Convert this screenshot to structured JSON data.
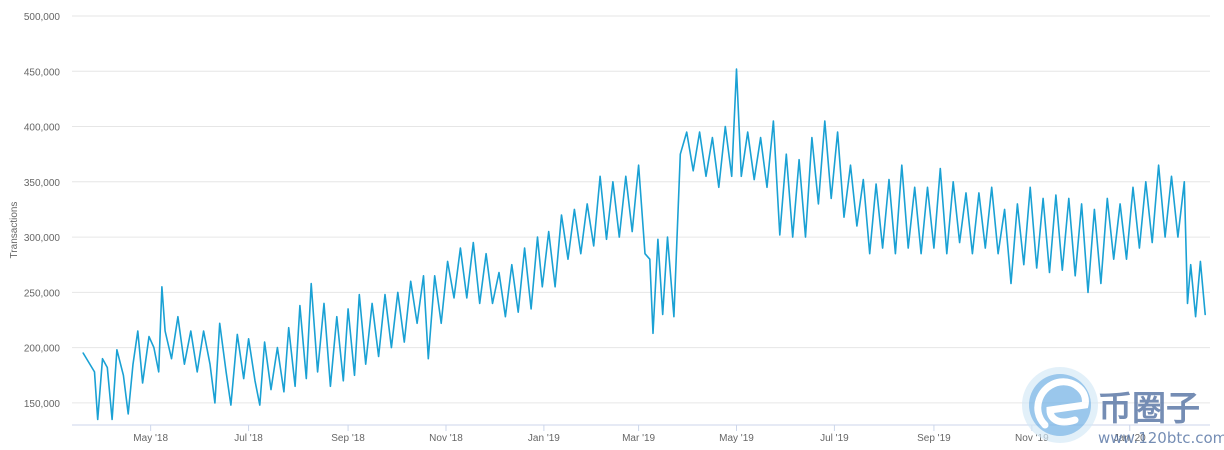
{
  "chart_data": {
    "type": "line",
    "title": "",
    "ylabel": "Transactions",
    "xlabel": "",
    "ylim": [
      130000,
      500000
    ],
    "xlim": [
      "2018-03-13",
      "2020-02-20"
    ],
    "grid": true,
    "y_ticks": [
      {
        "value": 150000,
        "label": "150,000"
      },
      {
        "value": 200000,
        "label": "200,000"
      },
      {
        "value": 250000,
        "label": "250,000"
      },
      {
        "value": 300000,
        "label": "300,000"
      },
      {
        "value": 350000,
        "label": "350,000"
      },
      {
        "value": 400000,
        "label": "400,000"
      },
      {
        "value": 450000,
        "label": "450,000"
      },
      {
        "value": 500000,
        "label": "500,000"
      }
    ],
    "x_ticks": [
      {
        "date": "2018-05-01",
        "label": "May '18"
      },
      {
        "date": "2018-07-01",
        "label": "Jul '18"
      },
      {
        "date": "2018-09-01",
        "label": "Sep '18"
      },
      {
        "date": "2018-11-01",
        "label": "Nov '18"
      },
      {
        "date": "2019-01-01",
        "label": "Jan '19"
      },
      {
        "date": "2019-03-01",
        "label": "Mar '19"
      },
      {
        "date": "2019-05-01",
        "label": "May '19"
      },
      {
        "date": "2019-07-01",
        "label": "Jul '19"
      },
      {
        "date": "2019-09-01",
        "label": "Sep '19"
      },
      {
        "date": "2019-11-01",
        "label": "Nov '19"
      },
      {
        "date": "2020-01-01",
        "label": "Jan '20"
      }
    ],
    "series": [
      {
        "color": "#1aa1d4",
        "points": [
          [
            "2018-03-20",
            195000
          ],
          [
            "2018-03-27",
            178000
          ],
          [
            "2018-03-29",
            135000
          ],
          [
            "2018-04-01",
            190000
          ],
          [
            "2018-04-04",
            182000
          ],
          [
            "2018-04-07",
            135000
          ],
          [
            "2018-04-10",
            198000
          ],
          [
            "2018-04-14",
            175000
          ],
          [
            "2018-04-17",
            140000
          ],
          [
            "2018-04-20",
            185000
          ],
          [
            "2018-04-23",
            215000
          ],
          [
            "2018-04-26",
            168000
          ],
          [
            "2018-04-30",
            210000
          ],
          [
            "2018-05-03",
            200000
          ],
          [
            "2018-05-06",
            178000
          ],
          [
            "2018-05-08",
            255000
          ],
          [
            "2018-05-10",
            215000
          ],
          [
            "2018-05-14",
            190000
          ],
          [
            "2018-05-18",
            228000
          ],
          [
            "2018-05-22",
            185000
          ],
          [
            "2018-05-26",
            215000
          ],
          [
            "2018-05-30",
            178000
          ],
          [
            "2018-06-03",
            215000
          ],
          [
            "2018-06-07",
            185000
          ],
          [
            "2018-06-10",
            150000
          ],
          [
            "2018-06-13",
            222000
          ],
          [
            "2018-06-17",
            178000
          ],
          [
            "2018-06-20",
            148000
          ],
          [
            "2018-06-24",
            212000
          ],
          [
            "2018-06-28",
            172000
          ],
          [
            "2018-07-01",
            208000
          ],
          [
            "2018-07-05",
            170000
          ],
          [
            "2018-07-08",
            148000
          ],
          [
            "2018-07-11",
            205000
          ],
          [
            "2018-07-15",
            162000
          ],
          [
            "2018-07-19",
            200000
          ],
          [
            "2018-07-23",
            160000
          ],
          [
            "2018-07-26",
            218000
          ],
          [
            "2018-07-30",
            165000
          ],
          [
            "2018-08-02",
            238000
          ],
          [
            "2018-08-06",
            172000
          ],
          [
            "2018-08-09",
            258000
          ],
          [
            "2018-08-13",
            178000
          ],
          [
            "2018-08-17",
            240000
          ],
          [
            "2018-08-21",
            165000
          ],
          [
            "2018-08-25",
            228000
          ],
          [
            "2018-08-29",
            170000
          ],
          [
            "2018-09-01",
            235000
          ],
          [
            "2018-09-05",
            175000
          ],
          [
            "2018-09-08",
            248000
          ],
          [
            "2018-09-12",
            185000
          ],
          [
            "2018-09-16",
            240000
          ],
          [
            "2018-09-20",
            192000
          ],
          [
            "2018-09-24",
            248000
          ],
          [
            "2018-09-28",
            200000
          ],
          [
            "2018-10-02",
            250000
          ],
          [
            "2018-10-06",
            205000
          ],
          [
            "2018-10-10",
            260000
          ],
          [
            "2018-10-14",
            222000
          ],
          [
            "2018-10-18",
            265000
          ],
          [
            "2018-10-21",
            190000
          ],
          [
            "2018-10-25",
            265000
          ],
          [
            "2018-10-29",
            222000
          ],
          [
            "2018-11-02",
            278000
          ],
          [
            "2018-11-06",
            245000
          ],
          [
            "2018-11-10",
            290000
          ],
          [
            "2018-11-14",
            245000
          ],
          [
            "2018-11-18",
            295000
          ],
          [
            "2018-11-22",
            240000
          ],
          [
            "2018-11-26",
            285000
          ],
          [
            "2018-11-30",
            240000
          ],
          [
            "2018-12-04",
            268000
          ],
          [
            "2018-12-08",
            228000
          ],
          [
            "2018-12-12",
            275000
          ],
          [
            "2018-12-16",
            232000
          ],
          [
            "2018-12-20",
            290000
          ],
          [
            "2018-12-24",
            235000
          ],
          [
            "2018-12-28",
            300000
          ],
          [
            "2018-12-31",
            255000
          ],
          [
            "2019-01-04",
            305000
          ],
          [
            "2019-01-08",
            255000
          ],
          [
            "2019-01-12",
            320000
          ],
          [
            "2019-01-16",
            280000
          ],
          [
            "2019-01-20",
            325000
          ],
          [
            "2019-01-24",
            285000
          ],
          [
            "2019-01-28",
            330000
          ],
          [
            "2019-02-01",
            292000
          ],
          [
            "2019-02-05",
            355000
          ],
          [
            "2019-02-09",
            298000
          ],
          [
            "2019-02-13",
            350000
          ],
          [
            "2019-02-17",
            300000
          ],
          [
            "2019-02-21",
            355000
          ],
          [
            "2019-02-25",
            305000
          ],
          [
            "2019-03-01",
            365000
          ],
          [
            "2019-03-05",
            285000
          ],
          [
            "2019-03-08",
            280000
          ],
          [
            "2019-03-10",
            213000
          ],
          [
            "2019-03-13",
            298000
          ],
          [
            "2019-03-16",
            230000
          ],
          [
            "2019-03-19",
            300000
          ],
          [
            "2019-03-23",
            228000
          ],
          [
            "2019-03-27",
            375000
          ],
          [
            "2019-03-31",
            395000
          ],
          [
            "2019-04-04",
            360000
          ],
          [
            "2019-04-08",
            395000
          ],
          [
            "2019-04-12",
            355000
          ],
          [
            "2019-04-16",
            390000
          ],
          [
            "2019-04-20",
            345000
          ],
          [
            "2019-04-24",
            400000
          ],
          [
            "2019-04-28",
            355000
          ],
          [
            "2019-05-01",
            452000
          ],
          [
            "2019-05-04",
            355000
          ],
          [
            "2019-05-08",
            395000
          ],
          [
            "2019-05-12",
            352000
          ],
          [
            "2019-05-16",
            390000
          ],
          [
            "2019-05-20",
            345000
          ],
          [
            "2019-05-24",
            405000
          ],
          [
            "2019-05-28",
            302000
          ],
          [
            "2019-06-01",
            375000
          ],
          [
            "2019-06-05",
            300000
          ],
          [
            "2019-06-09",
            370000
          ],
          [
            "2019-06-13",
            300000
          ],
          [
            "2019-06-17",
            390000
          ],
          [
            "2019-06-21",
            330000
          ],
          [
            "2019-06-25",
            405000
          ],
          [
            "2019-06-29",
            335000
          ],
          [
            "2019-07-03",
            395000
          ],
          [
            "2019-07-07",
            318000
          ],
          [
            "2019-07-11",
            365000
          ],
          [
            "2019-07-15",
            310000
          ],
          [
            "2019-07-19",
            352000
          ],
          [
            "2019-07-23",
            285000
          ],
          [
            "2019-07-27",
            348000
          ],
          [
            "2019-07-31",
            290000
          ],
          [
            "2019-08-04",
            352000
          ],
          [
            "2019-08-08",
            285000
          ],
          [
            "2019-08-12",
            365000
          ],
          [
            "2019-08-16",
            290000
          ],
          [
            "2019-08-20",
            345000
          ],
          [
            "2019-08-24",
            285000
          ],
          [
            "2019-08-28",
            345000
          ],
          [
            "2019-09-01",
            290000
          ],
          [
            "2019-09-05",
            362000
          ],
          [
            "2019-09-09",
            285000
          ],
          [
            "2019-09-13",
            350000
          ],
          [
            "2019-09-17",
            295000
          ],
          [
            "2019-09-21",
            340000
          ],
          [
            "2019-09-25",
            285000
          ],
          [
            "2019-09-29",
            340000
          ],
          [
            "2019-10-03",
            290000
          ],
          [
            "2019-10-07",
            345000
          ],
          [
            "2019-10-11",
            285000
          ],
          [
            "2019-10-15",
            325000
          ],
          [
            "2019-10-19",
            258000
          ],
          [
            "2019-10-23",
            330000
          ],
          [
            "2019-10-27",
            275000
          ],
          [
            "2019-10-31",
            345000
          ],
          [
            "2019-11-04",
            272000
          ],
          [
            "2019-11-08",
            335000
          ],
          [
            "2019-11-12",
            268000
          ],
          [
            "2019-11-16",
            338000
          ],
          [
            "2019-11-20",
            270000
          ],
          [
            "2019-11-24",
            335000
          ],
          [
            "2019-11-28",
            265000
          ],
          [
            "2019-12-02",
            330000
          ],
          [
            "2019-12-06",
            250000
          ],
          [
            "2019-12-10",
            325000
          ],
          [
            "2019-12-14",
            258000
          ],
          [
            "2019-12-18",
            335000
          ],
          [
            "2019-12-22",
            280000
          ],
          [
            "2019-12-26",
            330000
          ],
          [
            "2019-12-30",
            280000
          ],
          [
            "2020-01-03",
            345000
          ],
          [
            "2020-01-07",
            290000
          ],
          [
            "2020-01-11",
            350000
          ],
          [
            "2020-01-15",
            295000
          ],
          [
            "2020-01-19",
            365000
          ],
          [
            "2020-01-23",
            300000
          ],
          [
            "2020-01-27",
            355000
          ],
          [
            "2020-01-31",
            300000
          ],
          [
            "2020-02-04",
            350000
          ],
          [
            "2020-02-06",
            240000
          ],
          [
            "2020-02-08",
            275000
          ],
          [
            "2020-02-11",
            228000
          ],
          [
            "2020-02-14",
            278000
          ],
          [
            "2020-02-17",
            230000
          ]
        ]
      }
    ]
  },
  "watermark": {
    "cn_text": "币圈子",
    "url_text": "www.120btc.com",
    "logo_color": "#5d7aa8",
    "icon": "circle-logo"
  }
}
